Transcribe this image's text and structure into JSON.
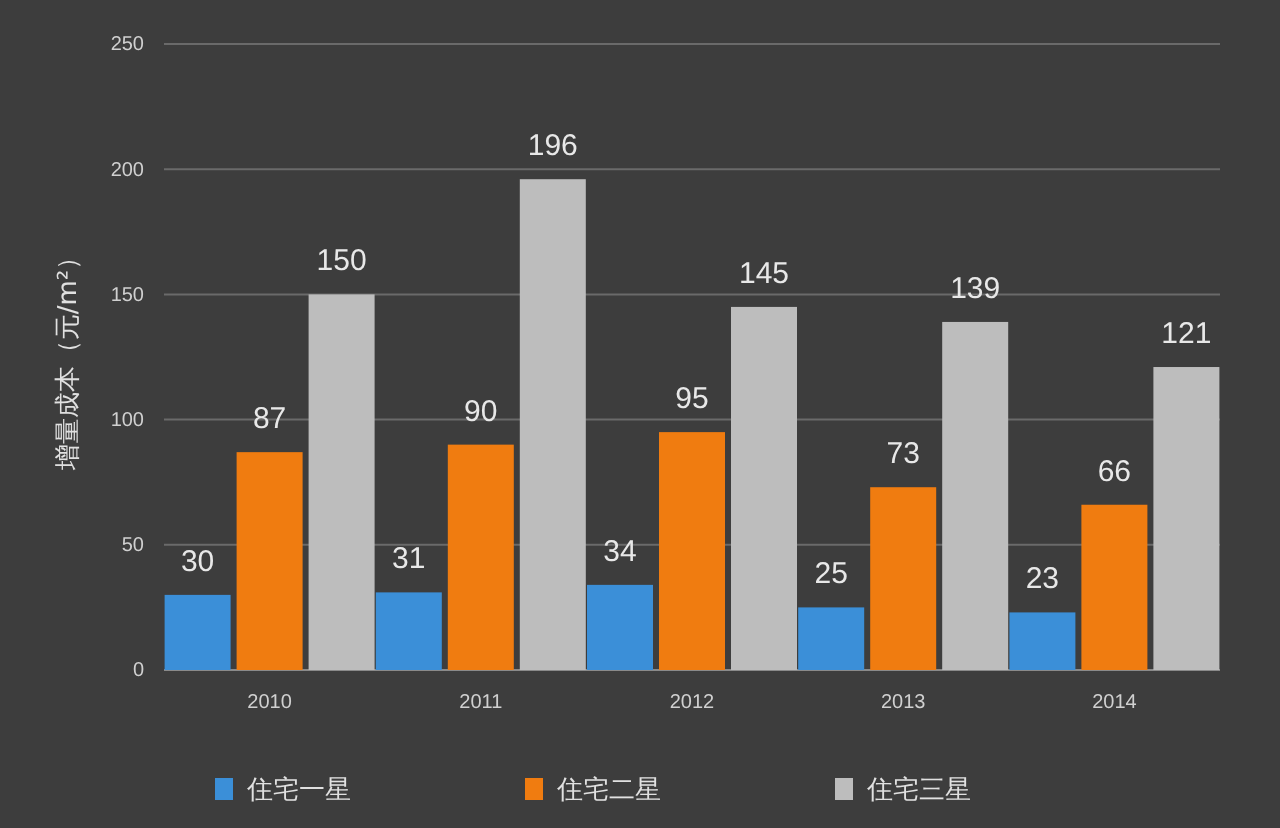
{
  "chart_data": {
    "type": "bar",
    "ylabel": "增量成本（元/m²）",
    "categories": [
      "2010",
      "2011",
      "2012",
      "2013",
      "2014"
    ],
    "series": [
      {
        "name": "住宅一星",
        "color": "#3b8fd8",
        "values": [
          30,
          31,
          34,
          25,
          23
        ]
      },
      {
        "name": "住宅二星",
        "color": "#f07c10",
        "values": [
          87,
          90,
          95,
          73,
          66
        ]
      },
      {
        "name": "住宅三星",
        "color": "#bdbdbd",
        "values": [
          150,
          196,
          145,
          139,
          121
        ]
      }
    ],
    "ylim": [
      0,
      250
    ],
    "yticks": [
      0,
      50,
      100,
      150,
      200,
      250
    ],
    "grid": "y",
    "data_labels": true,
    "legend": "bottom"
  }
}
